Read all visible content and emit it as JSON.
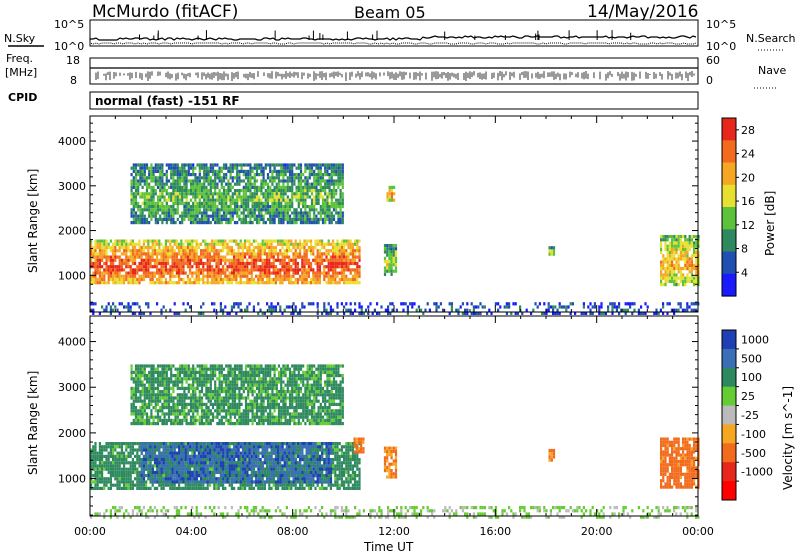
{
  "header": {
    "station": "McMurdo (fitACF)",
    "beam": "Beam 05",
    "date": "14/May/2016"
  },
  "top_panels": {
    "nsky_label": "N.Sky",
    "nsearch_label": "N.Search",
    "nsky_ticks": [
      "10^5",
      "10^0"
    ],
    "nsearch_ticks": [
      "10^5",
      "10^0"
    ],
    "freq_label_1": "Freq.",
    "freq_label_2": "[MHz]",
    "freq_ticks": [
      "18",
      "8"
    ],
    "nave_label": "Nave",
    "nave_ticks": [
      "60",
      "0"
    ],
    "cpid_label": "CPID",
    "cpid_text": "normal (fast) -151 RF"
  },
  "chart_data": [
    {
      "type": "heatmap",
      "title": "",
      "xlabel": "Time UT",
      "ylabel": "Slant Range [km]",
      "x_ticks": [
        "00:00",
        "04:00",
        "08:00",
        "12:00",
        "16:00",
        "20:00",
        "00:00"
      ],
      "xlim_hours": [
        0,
        24
      ],
      "y_ticks": [
        1000,
        2000,
        3000,
        4000
      ],
      "ylim": [
        180,
        4560
      ],
      "colorbar": {
        "label": "Power [dB]",
        "ticks": [
          4,
          8,
          12,
          16,
          20,
          24,
          28
        ],
        "range": [
          0,
          30
        ],
        "colors": [
          "#1a1aff",
          "#1f4fb0",
          "#2e8a5e",
          "#5cc23a",
          "#e8e030",
          "#f5a623",
          "#f26a1b",
          "#e8271c"
        ]
      },
      "echo_regions": [
        {
          "t_start": 0.0,
          "t_end": 10.6,
          "range_min": 800,
          "range_max": 1800,
          "power_db": 26
        },
        {
          "t_start": 1.6,
          "t_end": 10.0,
          "range_min": 2200,
          "range_max": 3500,
          "power_db": 12
        },
        {
          "t_start": 11.6,
          "t_end": 12.1,
          "range_min": 1000,
          "range_max": 1700,
          "power_db": 16
        },
        {
          "t_start": 11.7,
          "t_end": 12.0,
          "range_min": 2700,
          "range_max": 3000,
          "power_db": 22
        },
        {
          "t_start": 18.1,
          "t_end": 18.3,
          "range_min": 1450,
          "range_max": 1650,
          "power_db": 16
        },
        {
          "t_start": 22.5,
          "t_end": 24.0,
          "range_min": 800,
          "range_max": 1900,
          "power_db": 20
        },
        {
          "t_start": 0.0,
          "t_end": 24.0,
          "range_min": 180,
          "range_max": 400,
          "power_db": 6
        }
      ]
    },
    {
      "type": "heatmap",
      "title": "",
      "xlabel": "Time UT",
      "ylabel": "Slant Range [km]",
      "x_ticks": [
        "00:00",
        "04:00",
        "08:00",
        "12:00",
        "16:00",
        "20:00",
        "00:00"
      ],
      "xlim_hours": [
        0,
        24
      ],
      "y_ticks": [
        1000,
        2000,
        3000,
        4000
      ],
      "ylim": [
        180,
        4560
      ],
      "colorbar": {
        "label": "Velocity [m s^-1]",
        "ticks": [
          1000,
          500,
          100,
          25,
          -25,
          -100,
          -500,
          -1000
        ],
        "colors": [
          "#1f3fb5",
          "#3a6fb8",
          "#2e8a5e",
          "#66cc33",
          "#bbbbbb",
          "#f5a623",
          "#f26a1b",
          "#e8271c",
          "#ff0000"
        ]
      },
      "echo_regions": [
        {
          "t_start": 0.0,
          "t_end": 10.6,
          "range_min": 800,
          "range_max": 1800,
          "velocity": 200
        },
        {
          "t_start": 2.0,
          "t_end": 9.5,
          "range_min": 900,
          "range_max": 1800,
          "velocity": 800
        },
        {
          "t_start": 10.4,
          "t_end": 10.8,
          "range_min": 1600,
          "range_max": 1900,
          "velocity": -150
        },
        {
          "t_start": 1.6,
          "t_end": 10.0,
          "range_min": 2200,
          "range_max": 3500,
          "velocity": 150
        },
        {
          "t_start": 11.6,
          "t_end": 12.1,
          "range_min": 1000,
          "range_max": 1700,
          "velocity": -100
        },
        {
          "t_start": 18.1,
          "t_end": 18.3,
          "range_min": 1400,
          "range_max": 1650,
          "velocity": -150
        },
        {
          "t_start": 22.5,
          "t_end": 24.0,
          "range_min": 800,
          "range_max": 1900,
          "velocity": -200
        },
        {
          "t_start": 0.0,
          "t_end": 24.0,
          "range_min": 180,
          "range_max": 400,
          "velocity": 30
        }
      ]
    }
  ],
  "colors": {
    "axis": "#000000",
    "background": "#ffffff"
  }
}
